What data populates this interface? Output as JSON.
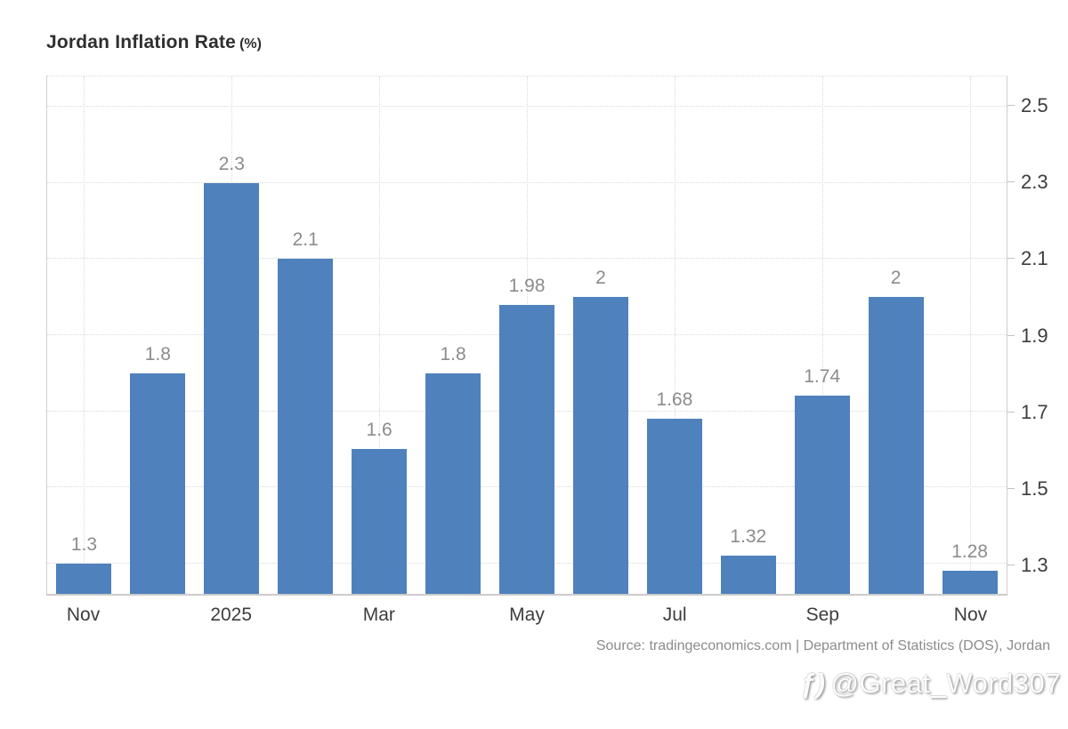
{
  "title": {
    "main": "Jordan Inflation Rate",
    "suffix": "(%)"
  },
  "source": "Source: tradingeconomics.com | Department of Statistics (DOS), Jordan",
  "watermark": {
    "icon": "ƒ)",
    "handle": "@Great_Word307"
  },
  "colors": {
    "bar": "#4f81bd",
    "value_label": "#8c8c8c",
    "axis_text": "#3d3d3d",
    "grid": "#d9d9d9",
    "border": "#cfcfcf",
    "source_text": "#8c8c8c"
  },
  "chart_data": {
    "type": "bar",
    "title": "Jordan Inflation Rate (%)",
    "xlabel": "",
    "ylabel": "",
    "values": [
      1.3,
      1.8,
      2.3,
      2.1,
      1.6,
      1.8,
      1.98,
      2,
      1.68,
      1.32,
      1.74,
      2,
      1.28
    ],
    "value_labels": [
      "1.3",
      "1.8",
      "2.3",
      "2.1",
      "1.6",
      "1.8",
      "1.98",
      "2",
      "1.68",
      "1.32",
      "1.74",
      "2",
      "1.28"
    ],
    "x_ticks": [
      {
        "label": "Nov",
        "bar_index": 0
      },
      {
        "label": "2025",
        "bar_index": 2
      },
      {
        "label": "Mar",
        "bar_index": 4
      },
      {
        "label": "May",
        "bar_index": 6
      },
      {
        "label": "Jul",
        "bar_index": 8
      },
      {
        "label": "Sep",
        "bar_index": 10
      },
      {
        "label": "Nov",
        "bar_index": 12
      }
    ],
    "y_ticks": [
      1.3,
      1.5,
      1.7,
      1.9,
      2.1,
      2.3,
      2.5
    ],
    "ylim": [
      1.22,
      2.58
    ],
    "grid": true,
    "grid_style": "dotted",
    "legend": false,
    "y_axis_side": "right"
  }
}
